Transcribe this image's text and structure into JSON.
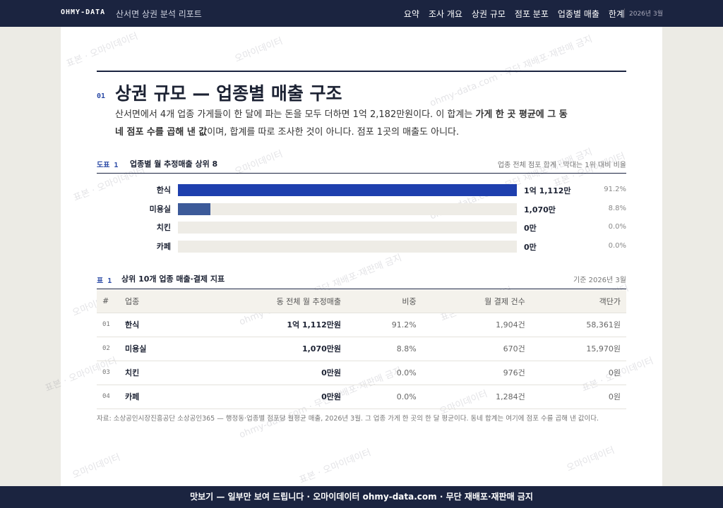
{
  "nav": {
    "brand": "OHMY-DATA",
    "title": "산서면 상권 분석 리포트",
    "links": [
      "요약",
      "조사 개요",
      "상권 규모",
      "점포 분포",
      "업종별 매출",
      "한계"
    ],
    "date": "2026년 3월"
  },
  "section": {
    "number": "01",
    "heading": "상권 규모 — 업종별 매출 구조",
    "intro": [
      "산서면에서 4개 업종 가게들이 한 달에 파는 돈을 모두 더하면 1억 2,182만원이다. 이 합계는 ",
      "가게 한 곳 평균에 그 동네 점포 수를 곱해 낸 값",
      "이며, 합계를 따로 조사한 것이 아니다. 점포 1곳의 매출도 아니다."
    ]
  },
  "figure": {
    "label": "도표 1",
    "title": "업종별 월 추정매출 상위 8",
    "note": "업종 전체 점포 합계 · 막대는 1위 대비 비율",
    "categories": [
      "한식",
      "미용실",
      "치킨",
      "카페"
    ],
    "values": [
      11112,
      1070,
      0,
      0
    ],
    "value_labels": [
      "1억 1,112만",
      "1,070만",
      "0만",
      "0만"
    ],
    "shares": [
      91.2,
      8.8,
      0.0,
      0.0
    ],
    "share_labels": [
      "91.2%",
      "8.8%",
      "0.0%",
      "0.0%"
    ],
    "colors": [
      "#1e3fae",
      "#3c5a99",
      "#3a5287",
      "#7d879e"
    ]
  },
  "table": {
    "label": "표 1",
    "title": "상위 10개 업종 매출·결제 지표",
    "note": "기준 2026년 3월",
    "header": [
      "#",
      "업종",
      "동 전체 월 추정매출",
      "비중",
      "월 결제 건수",
      "객단가"
    ],
    "rows": [
      [
        "01",
        "한식",
        "1억 1,112만원",
        "91.2%",
        "1,904건",
        "58,361원"
      ],
      [
        "02",
        "미용실",
        "1,070만원",
        "8.8%",
        "670건",
        "15,970원"
      ],
      [
        "03",
        "치킨",
        "0만원",
        "0.0%",
        "976건",
        "0원"
      ],
      [
        "04",
        "카페",
        "0만원",
        "0.0%",
        "1,284건",
        "0원"
      ]
    ],
    "source": "자료: 소상공인시장진흥공단 소상공인365 — 행정동·업종별 점포당 월평균 매출, 2026년 3월. 그 업종 가게 한 곳의 한 달 평균이다. 동네 합계는 여기에 점포 수를 곱해 낸 값이다."
  },
  "watermark": [
    "표본 · 오마이데이터",
    "오마이데이터",
    "ohmy-data.com · 무단 재배포·재판매 금지"
  ],
  "footer": "맛보기 — 일부만 보여 드립니다 · 오마이데이터 ohmy-data.com · 무단 재배포·재판매 금지"
}
